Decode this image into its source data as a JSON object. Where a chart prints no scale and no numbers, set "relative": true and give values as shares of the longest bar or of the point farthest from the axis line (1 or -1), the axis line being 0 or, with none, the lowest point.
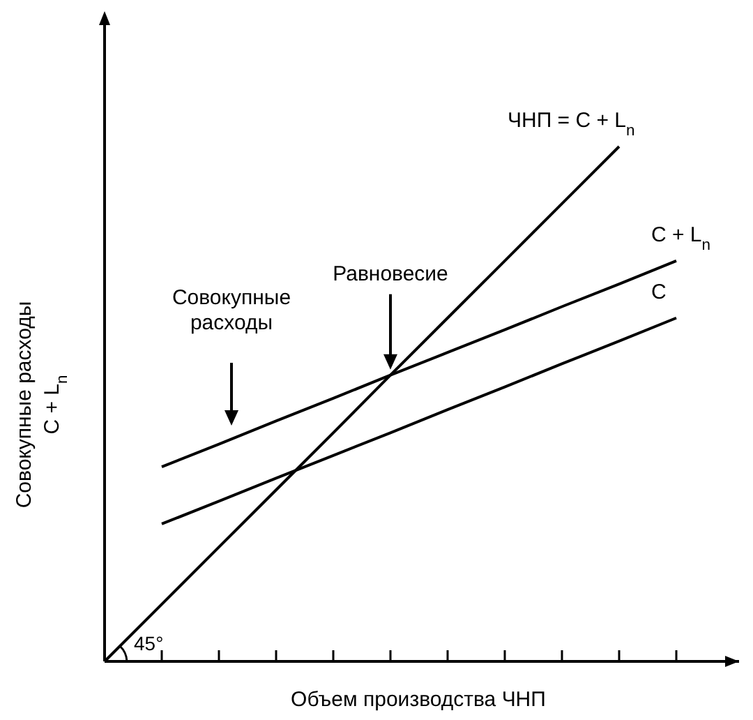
{
  "chart_data": {
    "type": "line",
    "relative": true,
    "xlabel": "Объем производства ЧНП",
    "ylabel": "Совокупные расходы\nC + L$_{n}$",
    "categories": [
      null,
      null,
      null,
      null,
      null,
      null,
      null,
      null,
      null,
      null,
      null
    ],
    "series": [
      {
        "name": "ЧНП = C + L$_{n}$",
        "color": "#000000",
        "values": [
          0,
          0.111,
          0.222,
          0.333,
          0.444,
          0.556,
          0.667,
          0.778,
          0.889,
          1,
          null
        ]
      },
      {
        "name": "C + L$_{n}$",
        "color": "#000000",
        "values": [
          null,
          0.378,
          0.422,
          0.467,
          0.511,
          0.556,
          0.6,
          0.644,
          0.689,
          0.733,
          0.778
        ]
      },
      {
        "name": "C",
        "color": "#000000",
        "values": [
          null,
          0.267,
          0.311,
          0.356,
          0.4,
          0.444,
          0.489,
          0.533,
          0.578,
          0.622,
          0.667
        ]
      }
    ],
    "annotations": [
      "Равновесие",
      "Совокупные\nрасходы",
      "45°"
    ],
    "grid": false,
    "marker": "none",
    "line_style": "solid"
  }
}
